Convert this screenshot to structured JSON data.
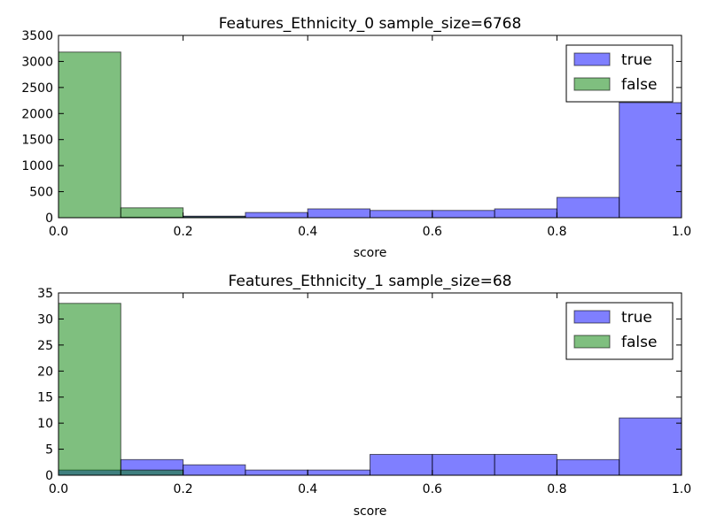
{
  "colors": {
    "true": "#0000ff",
    "false": "#008000",
    "alpha": 0.5
  },
  "chart_data": [
    {
      "type": "bar",
      "title": "Features_Ethnicity_0 sample_size=6768",
      "xlabel": "score",
      "ylabel": "",
      "xlim": [
        0.0,
        1.0
      ],
      "ylim": [
        0,
        3500
      ],
      "xticks": [
        "0.0",
        "0.2",
        "0.4",
        "0.6",
        "0.8",
        "1.0"
      ],
      "yticks": [
        "0",
        "500",
        "1000",
        "1500",
        "2000",
        "2500",
        "3000",
        "3500"
      ],
      "bin_edges": [
        0.0,
        0.1,
        0.2,
        0.3,
        0.4,
        0.5,
        0.6,
        0.7,
        0.8,
        0.9,
        1.0
      ],
      "legend": {
        "position": "top-right"
      },
      "series": [
        {
          "name": "true",
          "values": [
            0,
            10,
            30,
            100,
            170,
            140,
            140,
            170,
            390,
            2210
          ]
        },
        {
          "name": "false",
          "values": [
            3180,
            190,
            20,
            0,
            0,
            0,
            0,
            0,
            0,
            0
          ]
        }
      ]
    },
    {
      "type": "bar",
      "title": "Features_Ethnicity_1 sample_size=68",
      "xlabel": "score",
      "ylabel": "",
      "xlim": [
        0.0,
        1.0
      ],
      "ylim": [
        0,
        35
      ],
      "xticks": [
        "0.0",
        "0.2",
        "0.4",
        "0.6",
        "0.8",
        "1.0"
      ],
      "yticks": [
        "0",
        "5",
        "10",
        "15",
        "20",
        "25",
        "30",
        "35"
      ],
      "bin_edges": [
        0.0,
        0.1,
        0.2,
        0.3,
        0.4,
        0.5,
        0.6,
        0.7,
        0.8,
        0.9,
        1.0
      ],
      "legend": {
        "position": "top-right"
      },
      "series": [
        {
          "name": "true",
          "values": [
            1,
            3,
            2,
            1,
            1,
            4,
            4,
            4,
            3,
            11
          ]
        },
        {
          "name": "false",
          "values": [
            33,
            1,
            0,
            0,
            0,
            0,
            0,
            0,
            0,
            0
          ]
        }
      ]
    }
  ]
}
